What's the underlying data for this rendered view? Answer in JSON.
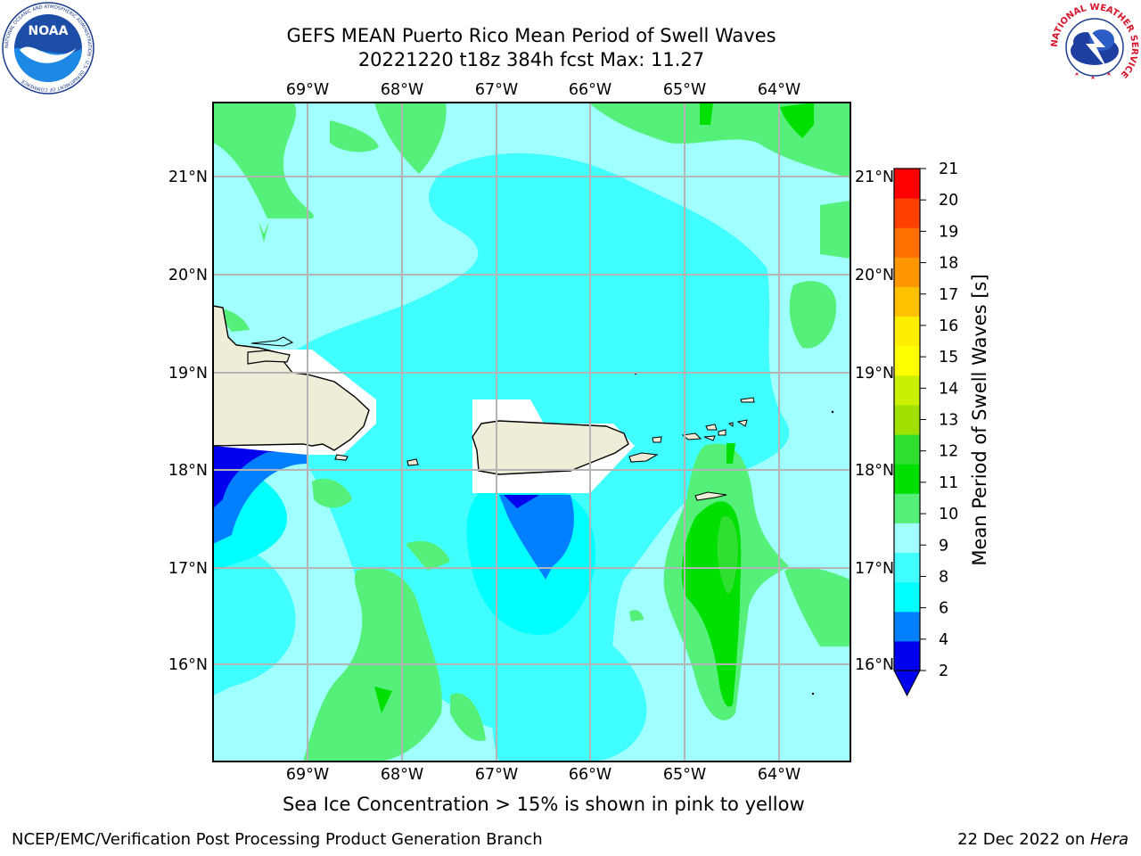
{
  "title_line1": "GEFS MEAN Puerto Rico Mean Period of Swell Waves",
  "title_line2": "20221220 t18z 384h fcst   Max: 11.27",
  "logos": {
    "noaa_text": "NOAA",
    "noaa_ring": "NATIONAL OCEANIC AND ATMOSPHERIC ADMINISTRATION · U.S. DEPARTMENT OF COMMERCE",
    "nws_ring": "NATIONAL WEATHER SERVICE"
  },
  "map": {
    "lon_labels": [
      "69°W",
      "68°W",
      "67°W",
      "66°W",
      "65°W",
      "64°W"
    ],
    "lat_labels": [
      "21°N",
      "20°N",
      "19°N",
      "18°N",
      "17°N",
      "16°N"
    ]
  },
  "colorbar": {
    "label": "Mean Period of Swell Waves [s]",
    "ticks": [
      "21",
      "20",
      "19",
      "18",
      "17",
      "16",
      "15",
      "14",
      "13",
      "12",
      "11",
      "10",
      "9",
      "8",
      "6",
      "4",
      "2"
    ],
    "bin_colors": [
      "#0000ee",
      "#0080ff",
      "#00ffff",
      "#40ffff",
      "#a0ffff",
      "#55f07a",
      "#00e000",
      "#30e030",
      "#a0e000",
      "#c8f000",
      "#ffff00",
      "#ffee00",
      "#ffc000",
      "#ff9800",
      "#ff7000",
      "#ff4000",
      "#ff0000"
    ]
  },
  "note": "Sea Ice Concentration > 15% is shown in pink to yellow",
  "footer": {
    "left": "NCEP/EMC/Verification Post Processing Product Generation Branch",
    "date": "22 Dec 2022 on ",
    "machine": "Hera"
  }
}
